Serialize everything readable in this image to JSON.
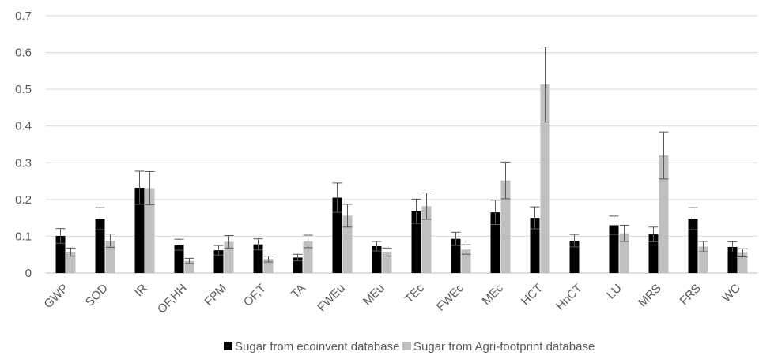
{
  "chart_data": {
    "type": "bar",
    "title": "",
    "xlabel": "",
    "ylabel": "",
    "ylim": [
      0,
      0.7
    ],
    "yticks": [
      "0",
      "0.1",
      "0.2",
      "0.3",
      "0.4",
      "0.5",
      "0.6",
      "0.7"
    ],
    "grid": true,
    "legend_position": "bottom",
    "categories": [
      "GWP",
      "SOD",
      "IR",
      "OF,HH",
      "FPM",
      "OF,T",
      "TA",
      "FWEu",
      "MEu",
      "TEc",
      "FWEc",
      "MEc",
      "HCT",
      "HnCT",
      "LU",
      "MRS",
      "FRS",
      "WC"
    ],
    "series": [
      {
        "name": "Sugar from ecoinvent database",
        "color": "#000000",
        "values": [
          0.101,
          0.148,
          0.232,
          0.077,
          0.062,
          0.078,
          0.042,
          0.205,
          0.073,
          0.168,
          0.093,
          0.165,
          0.15,
          0.088,
          0.13,
          0.105,
          0.148,
          0.071
        ],
        "errors": [
          0.02,
          0.03,
          0.045,
          0.015,
          0.013,
          0.015,
          0.009,
          0.04,
          0.013,
          0.033,
          0.018,
          0.033,
          0.03,
          0.017,
          0.025,
          0.02,
          0.03,
          0.014
        ]
      },
      {
        "name": "Sugar from Agri-footprint database",
        "color": "#bfbfbf",
        "values": [
          0.057,
          0.088,
          0.231,
          0.033,
          0.085,
          0.038,
          0.086,
          0.156,
          0.057,
          0.182,
          0.064,
          0.252,
          0.513,
          0.0,
          0.108,
          0.32,
          0.072,
          0.055
        ],
        "errors": [
          0.011,
          0.018,
          0.045,
          0.007,
          0.017,
          0.008,
          0.017,
          0.031,
          0.011,
          0.036,
          0.013,
          0.05,
          0.102,
          0.0,
          0.022,
          0.064,
          0.014,
          0.011
        ]
      }
    ]
  }
}
